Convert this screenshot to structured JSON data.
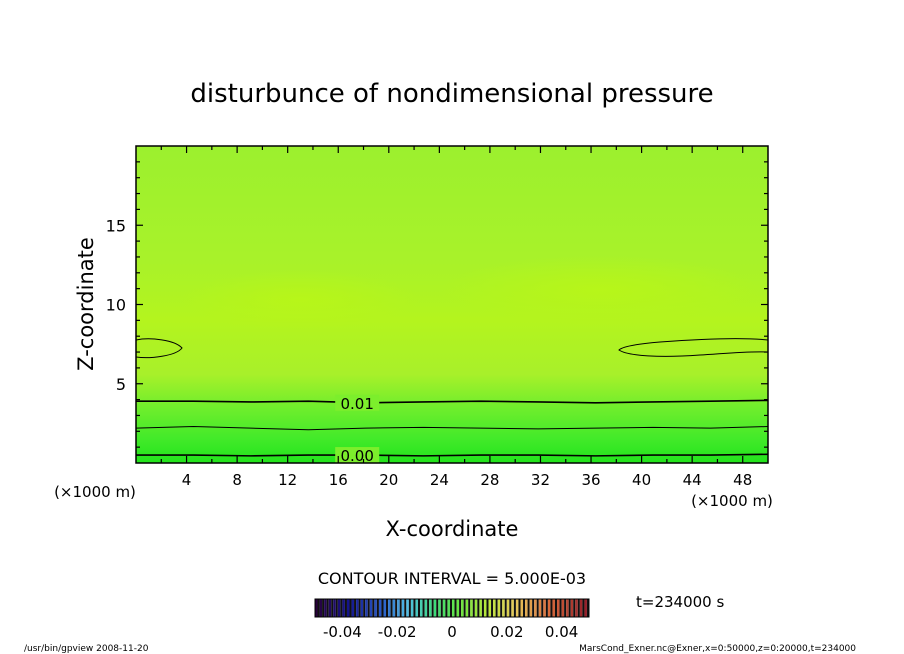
{
  "chart_data": {
    "type": "heatmap",
    "title": "disturbunce of nondimensional pressure",
    "xlabel": "X-coordinate",
    "ylabel": "Z-coordinate",
    "x_unit": "(×1000 m)",
    "y_unit": "(×1000 m)",
    "xlim": [
      0,
      50
    ],
    "ylim": [
      0,
      20
    ],
    "x_ticks": [
      4,
      8,
      12,
      16,
      20,
      24,
      28,
      32,
      36,
      40,
      44,
      48
    ],
    "y_ticks": [
      5,
      10,
      15
    ],
    "contour_lines": [
      {
        "label": "0.01",
        "z": [
          3.9,
          3.9,
          3.85,
          3.9,
          3.8,
          3.85,
          3.9,
          3.85,
          3.8,
          3.85,
          3.9,
          3.95
        ]
      },
      {
        "label": "",
        "z": [
          2.2,
          2.3,
          2.2,
          2.1,
          2.2,
          2.25,
          2.2,
          2.15,
          2.2,
          2.25,
          2.2,
          2.3
        ]
      },
      {
        "label": "0.00",
        "z": [
          0.5,
          0.5,
          0.45,
          0.5,
          0.5,
          0.45,
          0.5,
          0.5,
          0.45,
          0.5,
          0.5,
          0.55
        ]
      }
    ],
    "contour_interval": "CONTOUR INTERVAL = 5.000E-03",
    "colorbar": {
      "tick_labels": [
        "-0.04",
        "-0.02",
        "0",
        "0.02",
        "0.04"
      ],
      "min": -0.05,
      "max": 0.05
    },
    "time_label": "t=234000 s"
  },
  "footer": {
    "left": "/usr/bin/gpview   2008-11-20",
    "right": "MarsCond_Exner.nc@Exner,x=0:50000,z=0:20000,t=234000"
  }
}
